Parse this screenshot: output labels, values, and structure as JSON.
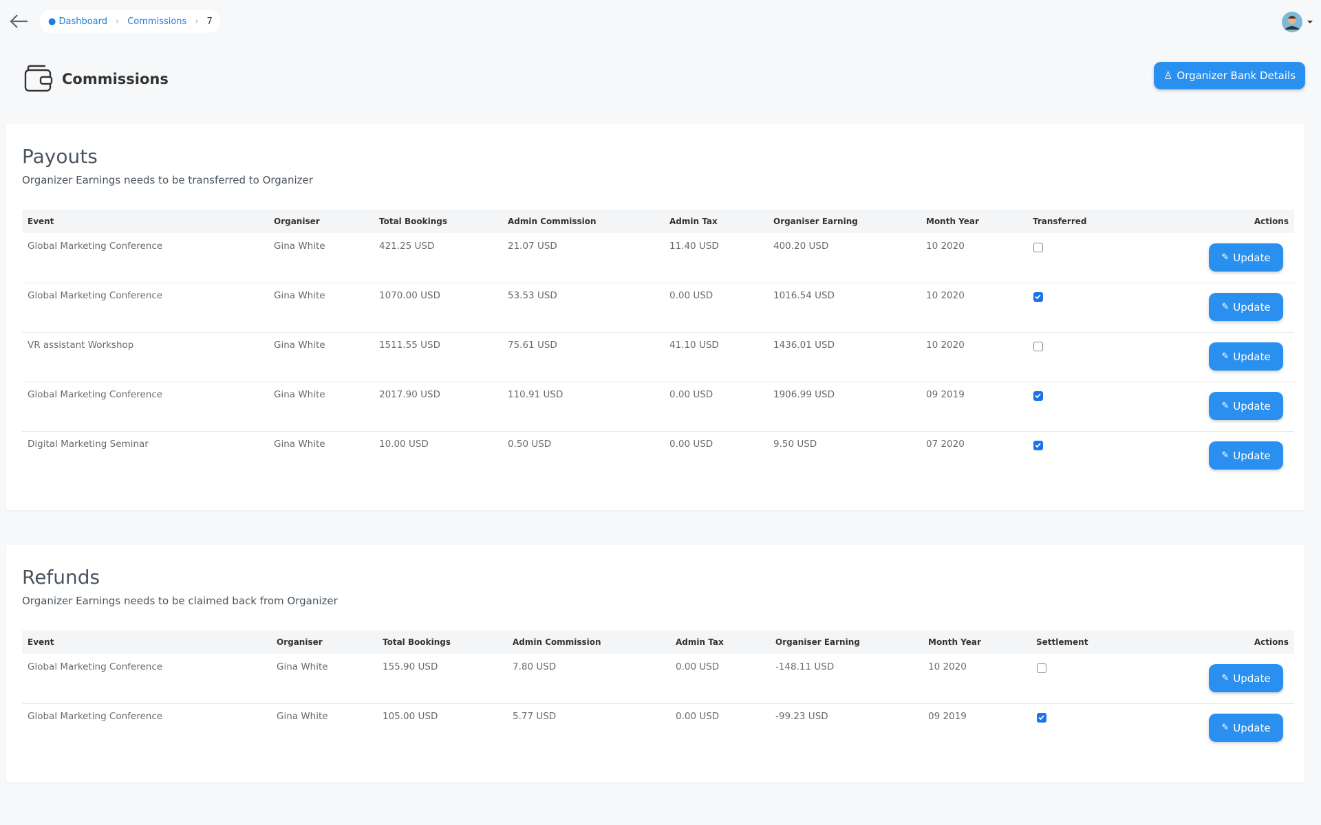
{
  "breadcrumb": {
    "items": [
      "Dashboard",
      "Commissions",
      "7"
    ]
  },
  "header": {
    "title": "Commissions",
    "button": "Organizer Bank Details"
  },
  "payouts": {
    "title": "Payouts",
    "subtitle": "Organizer Earnings needs to be transferred to Organizer",
    "columns": [
      "Event",
      "Organiser",
      "Total Bookings",
      "Admin Commission",
      "Admin Tax",
      "Organiser Earning",
      "Month Year",
      "Transferred",
      "Actions"
    ],
    "rows": [
      [
        "Global Marketing Conference",
        "Gina White",
        "421.25 USD",
        "21.07 USD",
        "11.40 USD",
        "400.20 USD",
        "10 2020"
      ],
      [
        "Global Marketing Conference",
        "Gina White",
        "1070.00 USD",
        "53.53 USD",
        "0.00 USD",
        "1016.54 USD",
        "10 2020"
      ],
      [
        "VR assistant Workshop",
        "Gina White",
        "1511.55 USD",
        "75.61 USD",
        "41.10 USD",
        "1436.01 USD",
        "10 2020"
      ],
      [
        "Global Marketing Conference",
        "Gina White",
        "2017.90 USD",
        "110.91 USD",
        "0.00 USD",
        "1906.99 USD",
        "09 2019"
      ],
      [
        "Digital Marketing Seminar",
        "Gina White",
        "10.00 USD",
        "0.50 USD",
        "0.00 USD",
        "9.50 USD",
        "07 2020"
      ]
    ],
    "checked": [
      false,
      true,
      false,
      true,
      true
    ],
    "action": "Update"
  },
  "refunds": {
    "title": "Refunds",
    "subtitle": "Organizer Earnings needs to be claimed back from Organizer",
    "columns": [
      "Event",
      "Organiser",
      "Total Bookings",
      "Admin Commission",
      "Admin Tax",
      "Organiser Earning",
      "Month Year",
      "Settlement",
      "Actions"
    ],
    "rows": [
      [
        "Global Marketing Conference",
        "Gina White",
        "155.90 USD",
        "7.80 USD",
        "0.00 USD",
        "-148.11 USD",
        "10 2020"
      ],
      [
        "Global Marketing Conference",
        "Gina White",
        "105.00 USD",
        "5.77 USD",
        "0.00 USD",
        "-99.23 USD",
        "09 2019"
      ]
    ],
    "checked": [
      false,
      true
    ],
    "action": "Update"
  }
}
